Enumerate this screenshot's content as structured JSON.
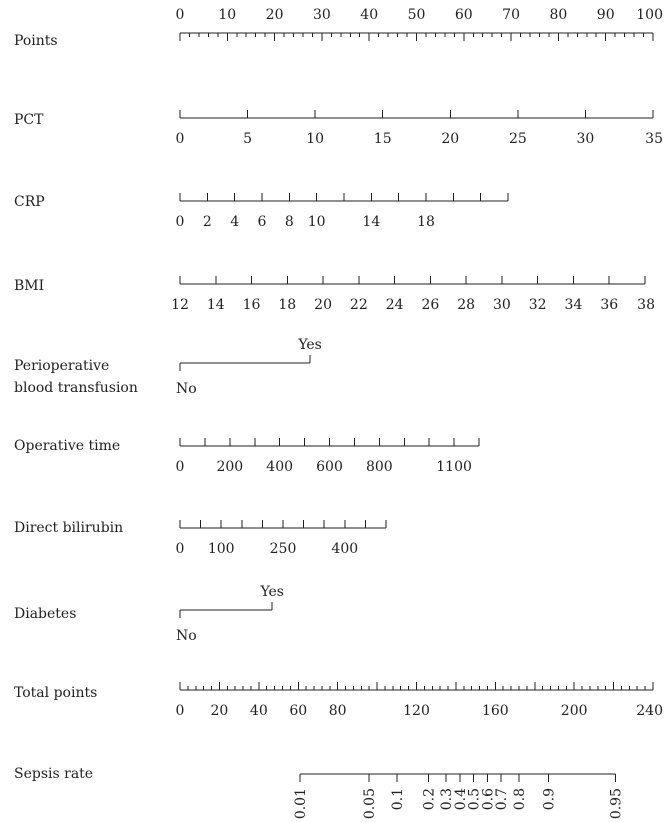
{
  "chart_data": {
    "type": "nomogram",
    "title": "",
    "scales": [
      {
        "name": "Points",
        "kind": "numeric",
        "min": 0,
        "max": 100,
        "labels_above": true,
        "major_ticks": [
          0,
          10,
          20,
          30,
          40,
          50,
          60,
          70,
          80,
          90,
          100
        ],
        "minor_step": 2,
        "tick_labels": [
          "0",
          "10",
          "20",
          "30",
          "40",
          "50",
          "60",
          "70",
          "80",
          "90",
          "100"
        ]
      },
      {
        "name": "PCT",
        "kind": "numeric",
        "min": 0,
        "max": 35,
        "major_ticks": [
          0,
          5,
          10,
          15,
          20,
          25,
          30,
          35
        ],
        "tick_labels": [
          "0",
          "5",
          "10",
          "15",
          "20",
          "25",
          "30",
          "35"
        ]
      },
      {
        "name": "CRP",
        "kind": "numeric",
        "min": 0,
        "max": 24,
        "major_ticks": [
          0,
          2,
          4,
          6,
          8,
          10,
          12,
          14,
          16,
          18,
          20,
          22,
          24
        ],
        "tick_labels": [
          "0",
          "2",
          "4",
          "6",
          "8",
          "10",
          "",
          "14",
          "",
          "18",
          "",
          "",
          ""
        ]
      },
      {
        "name": "BMI",
        "kind": "numeric",
        "min": 12,
        "max": 38,
        "major_ticks": [
          12,
          14,
          16,
          18,
          20,
          22,
          24,
          26,
          28,
          30,
          32,
          34,
          36,
          38
        ],
        "tick_labels": [
          "12",
          "14",
          "16",
          "18",
          "20",
          "22",
          "24",
          "26",
          "28",
          "30",
          "32",
          "34",
          "36",
          "38"
        ]
      },
      {
        "name": "Perioperative blood transfusion",
        "name_lines": [
          "Perioperative",
          "blood transfusion"
        ],
        "kind": "categorical",
        "categories": [
          "No",
          "Yes"
        ],
        "points": [
          0,
          27.5
        ]
      },
      {
        "name": "Operative time",
        "kind": "numeric",
        "min": 0,
        "max": 1200,
        "major_ticks": [
          0,
          100,
          200,
          300,
          400,
          500,
          600,
          700,
          800,
          900,
          1000,
          1100,
          1200
        ],
        "tick_labels": [
          "0",
          "",
          "200",
          "",
          "400",
          "",
          "600",
          "",
          "800",
          "",
          "",
          "1100",
          ""
        ]
      },
      {
        "name": "Direct bilirubin",
        "kind": "numeric",
        "min": 0,
        "max": 500,
        "major_ticks": [
          0,
          50,
          100,
          150,
          200,
          250,
          300,
          350,
          400,
          450,
          500
        ],
        "tick_labels": [
          "0",
          "",
          "100",
          "",
          "",
          "250",
          "",
          "",
          "400",
          "",
          ""
        ]
      },
      {
        "name": "Diabetes",
        "kind": "categorical",
        "categories": [
          "No",
          "Yes"
        ],
        "points": [
          0,
          19.5
        ]
      },
      {
        "name": "Total points",
        "kind": "numeric",
        "min": 0,
        "max": 240,
        "major_ticks": [
          0,
          20,
          40,
          60,
          80,
          100,
          120,
          140,
          160,
          180,
          200,
          220,
          240
        ],
        "tick_labels": [
          "0",
          "20",
          "40",
          "60",
          "80",
          "",
          "120",
          "",
          "160",
          "",
          "200",
          "",
          "240"
        ],
        "minor_step": 4
      },
      {
        "name": "Sepsis rate",
        "kind": "probability",
        "ticks": [
          {
            "label": "0.01",
            "total_points": 61
          },
          {
            "label": "0.05",
            "total_points": 96
          },
          {
            "label": "0.1",
            "total_points": 110
          },
          {
            "label": "0.2",
            "total_points": 126
          },
          {
            "label": "0.3",
            "total_points": 135
          },
          {
            "label": "0.4",
            "total_points": 142
          },
          {
            "label": "0.5",
            "total_points": 149
          },
          {
            "label": "0.6",
            "total_points": 156
          },
          {
            "label": "0.7",
            "total_points": 163
          },
          {
            "label": "0.8",
            "total_points": 172
          },
          {
            "label": "0.9",
            "total_points": 187
          },
          {
            "label": "0.95",
            "total_points": 221
          }
        ]
      }
    ]
  }
}
